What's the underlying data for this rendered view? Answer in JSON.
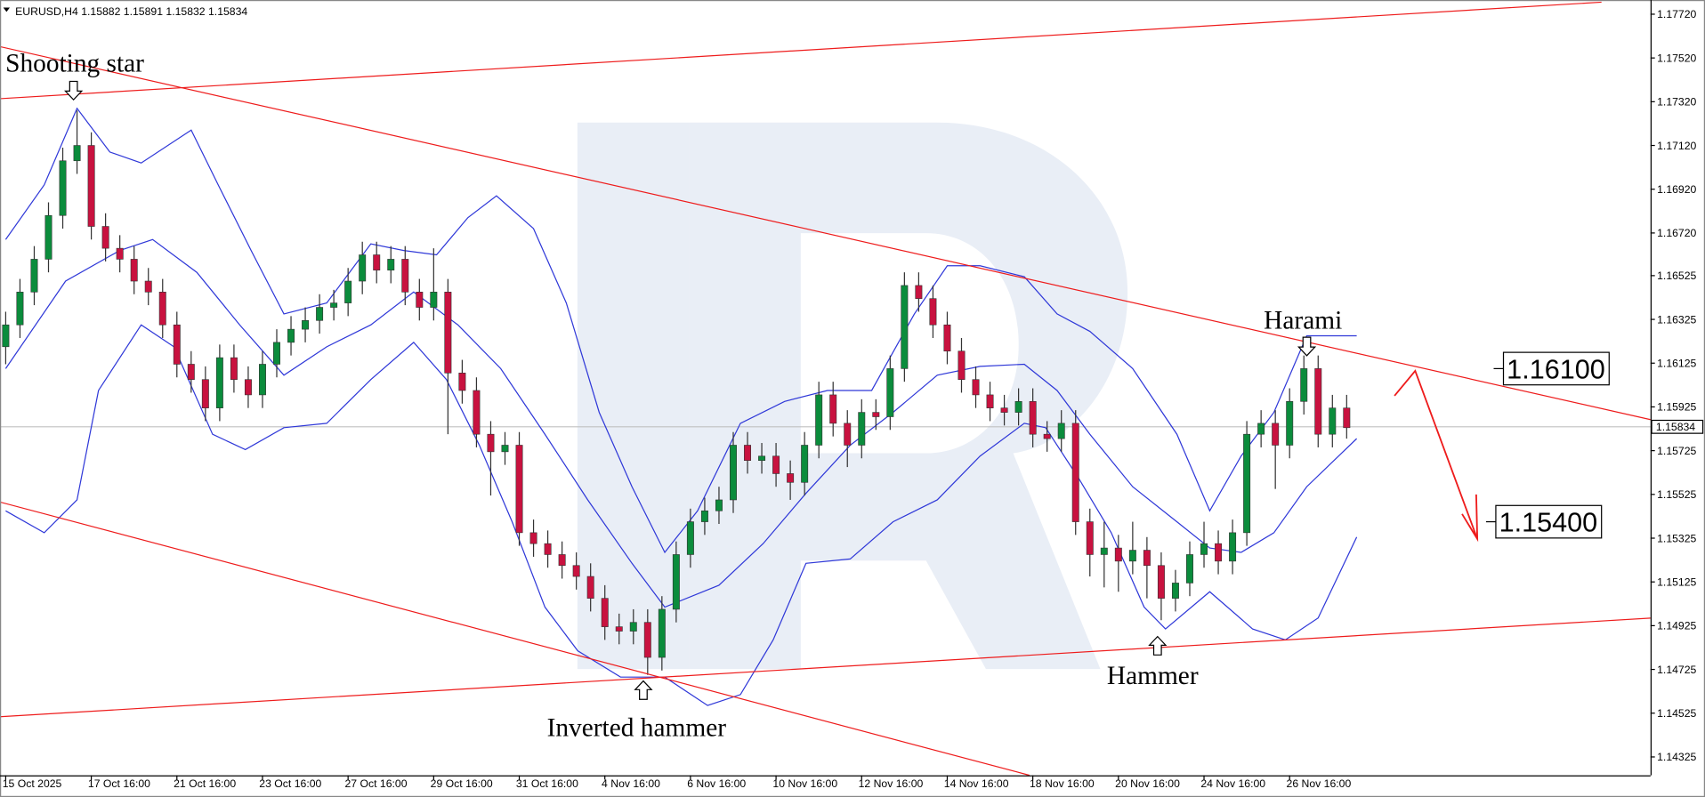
{
  "chart_data": {
    "type": "candlestick",
    "title": "EURUSD,H4  1.15882 1.15891 1.15832 1.15834",
    "bull_color": "#0b8c3c",
    "bear_color": "#c8123f",
    "open": [
      1.162,
      1.163,
      1.1645,
      1.166,
      1.168,
      1.1705,
      1.1712,
      1.1675,
      1.1665,
      1.166,
      1.165,
      1.1645,
      1.163,
      1.1612,
      1.1605,
      1.1592,
      1.1615,
      1.1605,
      1.1598,
      1.1612,
      1.1622,
      1.1628,
      1.1632,
      1.1638,
      1.164,
      1.165,
      1.1662,
      1.1655,
      1.166,
      1.1645,
      1.1638,
      1.1645,
      1.1608,
      1.16,
      1.158,
      1.1572,
      1.1575,
      1.1535,
      1.153,
      1.1525,
      1.152,
      1.1515,
      1.1505,
      1.1492,
      1.149,
      1.1494,
      1.1478,
      1.15,
      1.1525,
      1.154,
      1.1545,
      1.155,
      1.1575,
      1.1568,
      1.157,
      1.1562,
      1.1558,
      1.1575,
      1.1598,
      1.1585,
      1.1575,
      1.159,
      1.1588,
      1.161,
      1.1648,
      1.1642,
      1.163,
      1.1618,
      1.1605,
      1.1598,
      1.1592,
      1.159,
      1.1595,
      1.158,
      1.1578,
      1.1585,
      1.154,
      1.1525,
      1.1528,
      1.1522,
      1.1527,
      1.152,
      1.1505,
      1.1512,
      1.1525,
      1.153,
      1.1522,
      1.1535,
      1.158,
      1.1585,
      1.1575,
      1.1595,
      1.161,
      1.158,
      1.1592
    ],
    "high": [
      1.1636,
      1.1651,
      1.1666,
      1.1686,
      1.1711,
      1.1728,
      1.1718,
      1.1681,
      1.1671,
      1.1666,
      1.1656,
      1.1651,
      1.1636,
      1.1618,
      1.1611,
      1.1621,
      1.1621,
      1.1611,
      1.1618,
      1.1628,
      1.1634,
      1.1638,
      1.1644,
      1.1646,
      1.1656,
      1.1668,
      1.1668,
      1.1666,
      1.1666,
      1.1651,
      1.1665,
      1.1651,
      1.1614,
      1.1606,
      1.1586,
      1.1581,
      1.1581,
      1.1541,
      1.1536,
      1.1531,
      1.1526,
      1.1521,
      1.1511,
      1.1498,
      1.15,
      1.15,
      1.1506,
      1.1531,
      1.1546,
      1.1551,
      1.1556,
      1.1581,
      1.1581,
      1.1576,
      1.1576,
      1.1568,
      1.1581,
      1.1604,
      1.1604,
      1.1591,
      1.1596,
      1.1596,
      1.1616,
      1.1654,
      1.1654,
      1.1648,
      1.1636,
      1.1624,
      1.1611,
      1.1604,
      1.1598,
      1.1601,
      1.1601,
      1.1586,
      1.1591,
      1.1591,
      1.1546,
      1.154,
      1.1534,
      1.154,
      1.1533,
      1.1526,
      1.1518,
      1.1531,
      1.154,
      1.1536,
      1.1541,
      1.1586,
      1.1591,
      1.1591,
      1.1601,
      1.1616,
      1.1616,
      1.1598,
      1.1598
    ],
    "low": [
      1.1612,
      1.1624,
      1.1639,
      1.1654,
      1.1674,
      1.1699,
      1.1669,
      1.1659,
      1.1654,
      1.1644,
      1.1639,
      1.1624,
      1.1606,
      1.1599,
      1.1586,
      1.1586,
      1.1599,
      1.1592,
      1.1592,
      1.1606,
      1.1616,
      1.1622,
      1.1626,
      1.1632,
      1.1634,
      1.1644,
      1.1649,
      1.1649,
      1.1639,
      1.1632,
      1.1632,
      1.158,
      1.1594,
      1.1574,
      1.1552,
      1.1566,
      1.1529,
      1.1524,
      1.1519,
      1.1514,
      1.1509,
      1.1499,
      1.1486,
      1.1484,
      1.1484,
      1.147,
      1.1472,
      1.1494,
      1.1519,
      1.1534,
      1.1539,
      1.1544,
      1.1562,
      1.1562,
      1.1556,
      1.155,
      1.1552,
      1.1569,
      1.1579,
      1.1565,
      1.1569,
      1.1582,
      1.1582,
      1.1604,
      1.1636,
      1.1624,
      1.1612,
      1.1599,
      1.1592,
      1.1586,
      1.1584,
      1.1584,
      1.1574,
      1.1572,
      1.1572,
      1.1534,
      1.1515,
      1.151,
      1.1508,
      1.1516,
      1.1505,
      1.1495,
      1.1499,
      1.1506,
      1.1519,
      1.1516,
      1.1516,
      1.1529,
      1.1574,
      1.1555,
      1.1569,
      1.1589,
      1.1574,
      1.1574,
      1.1578
    ],
    "close": [
      1.163,
      1.1645,
      1.166,
      1.168,
      1.1705,
      1.1712,
      1.1675,
      1.1665,
      1.166,
      1.165,
      1.1645,
      1.163,
      1.1612,
      1.1605,
      1.1592,
      1.1615,
      1.1605,
      1.1598,
      1.1612,
      1.1622,
      1.1628,
      1.1632,
      1.1638,
      1.164,
      1.165,
      1.1662,
      1.1655,
      1.166,
      1.1645,
      1.1638,
      1.1645,
      1.1608,
      1.16,
      1.158,
      1.1572,
      1.1575,
      1.1535,
      1.153,
      1.1525,
      1.152,
      1.1515,
      1.1505,
      1.1492,
      1.149,
      1.1494,
      1.1478,
      1.15,
      1.1525,
      1.154,
      1.1545,
      1.155,
      1.1575,
      1.1568,
      1.157,
      1.1562,
      1.1558,
      1.1575,
      1.1598,
      1.1585,
      1.1575,
      1.159,
      1.1588,
      1.161,
      1.1648,
      1.1642,
      1.163,
      1.1618,
      1.1605,
      1.1598,
      1.1592,
      1.159,
      1.1595,
      1.158,
      1.1578,
      1.1585,
      1.154,
      1.1525,
      1.1528,
      1.1522,
      1.1527,
      1.152,
      1.1505,
      1.1512,
      1.1525,
      1.153,
      1.1522,
      1.1535,
      1.158,
      1.1585,
      1.1575,
      1.1595,
      1.161,
      1.158,
      1.1592,
      1.1583
    ],
    "bollinger": {
      "color": "#2f38d8",
      "upper": {
        "x": [
          0,
          2.7,
          5.0,
          7.3,
          9.5,
          13.0,
          14.9,
          17.2,
          19.5,
          22.5,
          25.6,
          27.9,
          30.2,
          32.4,
          34.4,
          37.0,
          39.3,
          41.6,
          43.9,
          46.2,
          48.5,
          51.5,
          54.6,
          57.6,
          60.7,
          63.7,
          66.0,
          68.3,
          71.4,
          73.7,
          76.0,
          79.0,
          82.1,
          84.4,
          86.6,
          88.9,
          91.2,
          94.7
        ],
        "values": [
          1.1669,
          1.1694,
          1.1729,
          1.1709,
          1.1704,
          1.1719,
          1.1694,
          1.1664,
          1.1635,
          1.164,
          1.1667,
          1.1664,
          1.1662,
          1.1679,
          1.1689,
          1.1674,
          1.164,
          1.159,
          1.1556,
          1.1526,
          1.1545,
          1.1585,
          1.1595,
          1.16,
          1.16,
          1.1635,
          1.1657,
          1.1657,
          1.1652,
          1.1635,
          1.1627,
          1.161,
          1.158,
          1.1545,
          1.157,
          1.159,
          1.1625,
          1.1625
        ]
      },
      "middle": {
        "x": [
          0,
          4.2,
          8.0,
          10.3,
          13.4,
          16.4,
          19.5,
          22.5,
          25.6,
          28.6,
          31.7,
          34.7,
          37.8,
          40.8,
          43.9,
          46.2,
          50.0,
          53.1,
          56.1,
          59.2,
          62.2,
          65.3,
          68.3,
          71.4,
          73.7,
          76.0,
          79.0,
          82.1,
          84.4,
          86.6,
          88.9,
          91.2,
          94.7
        ],
        "values": [
          1.161,
          1.165,
          1.1664,
          1.1669,
          1.1654,
          1.163,
          1.1607,
          1.162,
          1.163,
          1.1645,
          1.163,
          1.161,
          1.158,
          1.155,
          1.1521,
          1.1501,
          1.1511,
          1.153,
          1.1553,
          1.1575,
          1.159,
          1.1607,
          1.1611,
          1.1612,
          1.16,
          1.158,
          1.1556,
          1.154,
          1.1528,
          1.1526,
          1.1535,
          1.1556,
          1.1578
        ]
      },
      "lower": {
        "x": [
          0,
          2.7,
          5.0,
          6.5,
          9.5,
          11.8,
          14.5,
          16.8,
          19.5,
          22.5,
          25.6,
          28.6,
          30.9,
          33.2,
          35.5,
          37.8,
          40.1,
          43.1,
          46.2,
          49.2,
          51.5,
          53.8,
          56.1,
          59.2,
          62.2,
          65.3,
          68.3,
          71.4,
          72.9,
          75.2,
          77.5,
          79.8,
          81.3,
          84.4,
          87.4,
          89.7,
          92.0,
          94.7
        ],
        "values": [
          1.1545,
          1.1535,
          1.155,
          1.16,
          1.163,
          1.162,
          1.158,
          1.1573,
          1.1583,
          1.1585,
          1.1605,
          1.1622,
          1.1605,
          1.1575,
          1.154,
          1.1501,
          1.1481,
          1.1469,
          1.1469,
          1.1456,
          1.1461,
          1.1486,
          1.1521,
          1.1523,
          1.154,
          1.155,
          1.157,
          1.1585,
          1.1583,
          1.156,
          1.1535,
          1.1501,
          1.1491,
          1.1508,
          1.1491,
          1.1486,
          1.1496,
          1.1533
        ]
      }
    },
    "xlim": [
      -0.4,
      115.3
    ],
    "xticks": [
      {
        "value": 0,
        "label": "15 Oct 2025"
      },
      {
        "value": 6,
        "label": "17 Oct 16:00"
      },
      {
        "value": 12,
        "label": "21 Oct 16:00"
      },
      {
        "value": 18,
        "label": "23 Oct 16:00"
      },
      {
        "value": 24,
        "label": "27 Oct 16:00"
      },
      {
        "value": 30,
        "label": "29 Oct 16:00"
      },
      {
        "value": 36,
        "label": "31 Oct 16:00"
      },
      {
        "value": 42,
        "label": "4 Nov 16:00"
      },
      {
        "value": 48,
        "label": "6 Nov 16:00"
      },
      {
        "value": 54,
        "label": "10 Nov 16:00"
      },
      {
        "value": 60,
        "label": "12 Nov 16:00"
      },
      {
        "value": 66,
        "label": "14 Nov 16:00"
      },
      {
        "value": 72,
        "label": "18 Nov 16:00"
      },
      {
        "value": 78,
        "label": "20 Nov 16:00"
      },
      {
        "value": 84,
        "label": "24 Nov 16:00"
      },
      {
        "value": 90,
        "label": "26 Nov 16:00"
      }
    ],
    "ylim": [
      1.14241,
      1.17775
    ],
    "yticks": [
      {
        "value": 1.1772,
        "label": "1.17720"
      },
      {
        "value": 1.1752,
        "label": "1.17520"
      },
      {
        "value": 1.1732,
        "label": "1.17320"
      },
      {
        "value": 1.1712,
        "label": "1.17120"
      },
      {
        "value": 1.1692,
        "label": "1.16920"
      },
      {
        "value": 1.1672,
        "label": "1.16720"
      },
      {
        "value": 1.16525,
        "label": "1.16525"
      },
      {
        "value": 1.16325,
        "label": "1.16325"
      },
      {
        "value": 1.16125,
        "label": "1.16125"
      },
      {
        "value": 1.15925,
        "label": "1.15925"
      },
      {
        "value": 1.15725,
        "label": "1.15725"
      },
      {
        "value": 1.15525,
        "label": "1.15525"
      },
      {
        "value": 1.15325,
        "label": "1.15325"
      },
      {
        "value": 1.15125,
        "label": "1.15125"
      },
      {
        "value": 1.14925,
        "label": "1.14925"
      },
      {
        "value": 1.14725,
        "label": "1.14725"
      },
      {
        "value": 1.14525,
        "label": "1.14525"
      },
      {
        "value": 1.14325,
        "label": "1.14325"
      }
    ],
    "last_price": {
      "value": 1.15834,
      "label": "1.15834"
    },
    "levels": [
      {
        "value": 1.161,
        "label": "1.16100"
      },
      {
        "value": 1.154,
        "label": "1.15400"
      }
    ],
    "annotations": [
      "Shooting star",
      "Harami",
      "Inverted hammer",
      "Hammer"
    ]
  }
}
